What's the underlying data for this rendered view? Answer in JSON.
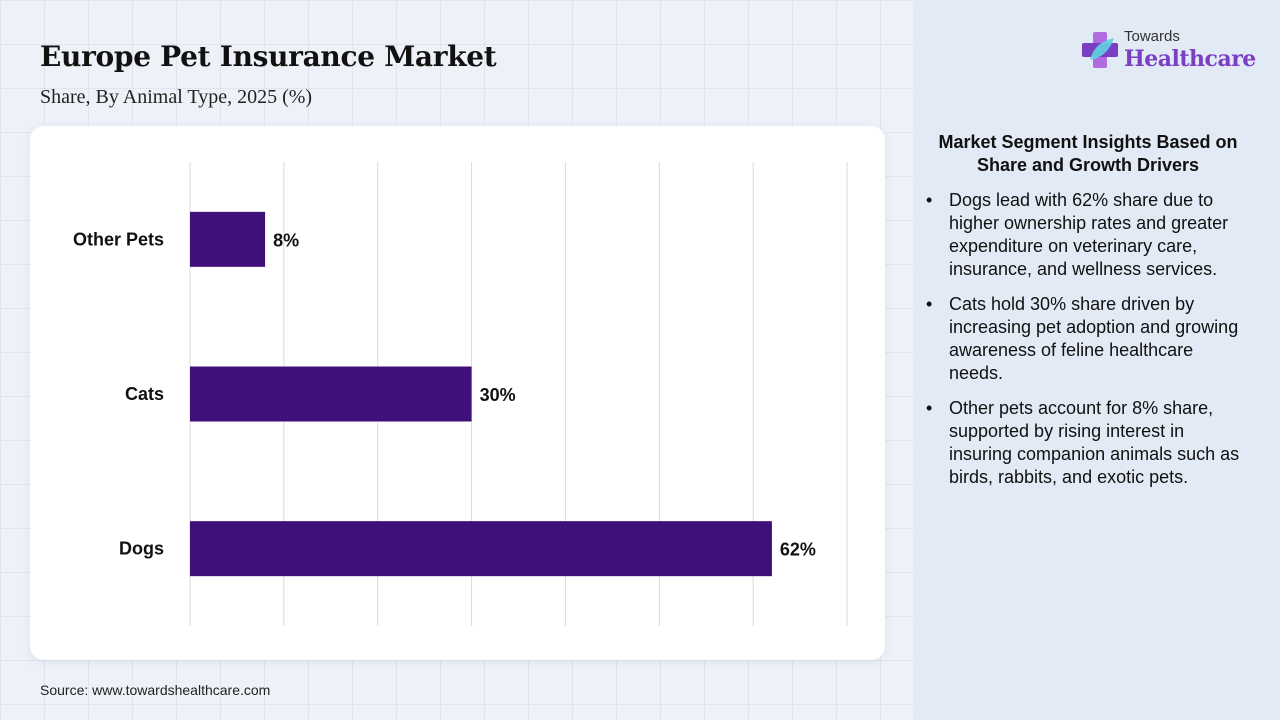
{
  "header": {
    "title": "Europe Pet Insurance Market",
    "subtitle": "Share, By Animal Type, 2025 (%)"
  },
  "logo": {
    "top": "Towards",
    "bottom": "Healthcare",
    "icon": "medical-cross-leaf-icon"
  },
  "source": "Source: www.towardshealthcare.com",
  "insights": {
    "title": "Market Segment Insights Based on Share and Growth Drivers",
    "bullets": [
      "Dogs lead with 62% share due to higher ownership rates and greater expenditure on veterinary care, insurance, and wellness services.",
      "Cats hold 30% share driven by increasing pet adoption and growing awareness of feline healthcare needs.",
      "Other pets account for 8% share, supported by rising interest in insuring companion animals such as birds, rabbits, and exotic pets."
    ]
  },
  "colors": {
    "bar": "#3f0f7a",
    "grid": "#d9d9d9",
    "accent": "#7b3fc4"
  },
  "chart_data": {
    "type": "bar",
    "orientation": "horizontal",
    "categories": [
      "Other Pets",
      "Cats",
      "Dogs"
    ],
    "values": [
      8,
      30,
      62
    ],
    "value_labels": [
      "8%",
      "30%",
      "62%"
    ],
    "xlim": [
      0,
      70
    ],
    "grid": true,
    "legend": "none"
  }
}
